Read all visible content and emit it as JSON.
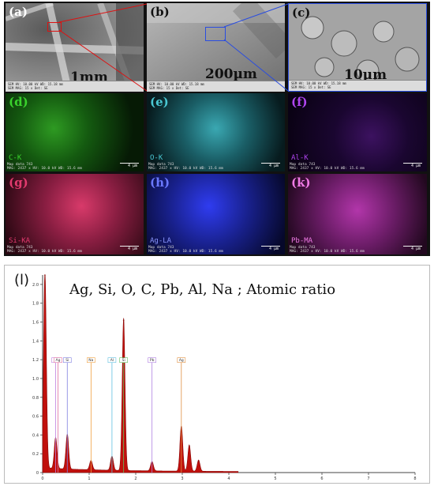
{
  "panels": {
    "a": {
      "label": "(a)",
      "scale": "1mm"
    },
    "b": {
      "label": "(b)",
      "scale": "200µm"
    },
    "c": {
      "label": "(c)",
      "scale": "10µm"
    },
    "d": {
      "label": "(d)",
      "element": "C-K",
      "color": "#39d12c"
    },
    "e": {
      "label": "(e)",
      "element": "O-K",
      "color": "#49c7d2"
    },
    "f": {
      "label": "(f)",
      "element": "Al-K",
      "color": "#b045f0"
    },
    "g": {
      "label": "(g)",
      "element": "Si-KA",
      "color": "#e23a6e"
    },
    "h": {
      "label": "(h)",
      "element": "Ag-LA",
      "color": "#2f3cf0"
    },
    "k": {
      "label": "(k)",
      "element": "Pb-MA",
      "color": "#d440c8"
    }
  },
  "sem_info": {
    "line1": "SEM HV: 10.00 kV   WD: 15.18 mm",
    "line2": "SEM MAG: 15 x    Det: SE"
  },
  "map_info": {
    "line1": "Map data 743",
    "line2": "MAG: 2437 x  HV: 10.0 kV  WD: 15.6 mm",
    "scale": "4 µm"
  },
  "spectrum": {
    "label": "(l)",
    "title": "Ag, Si, O, C, Pb, Al, Na ; Atomic ratio"
  },
  "chart_data": {
    "type": "line",
    "title": "Ag, Si, O, C, Pb, Al, Na ; Atomic ratio",
    "xlabel": "",
    "ylabel": "",
    "xlim": [
      0,
      8
    ],
    "ylim": [
      0,
      2.1
    ],
    "y_ticks": [
      "0",
      "0.2",
      "0.4",
      "0.6",
      "0.8",
      "1.0",
      "1.2",
      "1.4",
      "1.6",
      "1.8",
      "2.0"
    ],
    "x_ticks": [
      "0",
      "1",
      "2",
      "3",
      "4",
      "5",
      "6",
      "7",
      "8"
    ],
    "peaks": [
      {
        "x": 0.05,
        "y": 2.1
      },
      {
        "x": 0.28,
        "y": 0.33
      },
      {
        "x": 0.53,
        "y": 0.37
      },
      {
        "x": 1.04,
        "y": 0.1
      },
      {
        "x": 1.49,
        "y": 0.15
      },
      {
        "x": 1.74,
        "y": 1.62
      },
      {
        "x": 2.35,
        "y": 0.1
      },
      {
        "x": 2.98,
        "y": 0.48
      },
      {
        "x": 3.15,
        "y": 0.28
      },
      {
        "x": 3.35,
        "y": 0.12
      }
    ],
    "markers": [
      {
        "name": "C",
        "x": 0.28,
        "color": "#c080e0"
      },
      {
        "name": "Ag",
        "x": 0.33,
        "color": "#e070a0"
      },
      {
        "name": "Si",
        "x": 0.53,
        "color": "#8080e0"
      },
      {
        "name": "Na",
        "x": 1.04,
        "color": "#f0a040"
      },
      {
        "name": "Al",
        "x": 1.49,
        "color": "#60c0e0"
      },
      {
        "name": "Si",
        "x": 1.74,
        "color": "#60c060"
      },
      {
        "name": "Pb",
        "x": 2.35,
        "color": "#b080e0"
      },
      {
        "name": "Ag",
        "x": 2.98,
        "color": "#e09040"
      }
    ]
  }
}
